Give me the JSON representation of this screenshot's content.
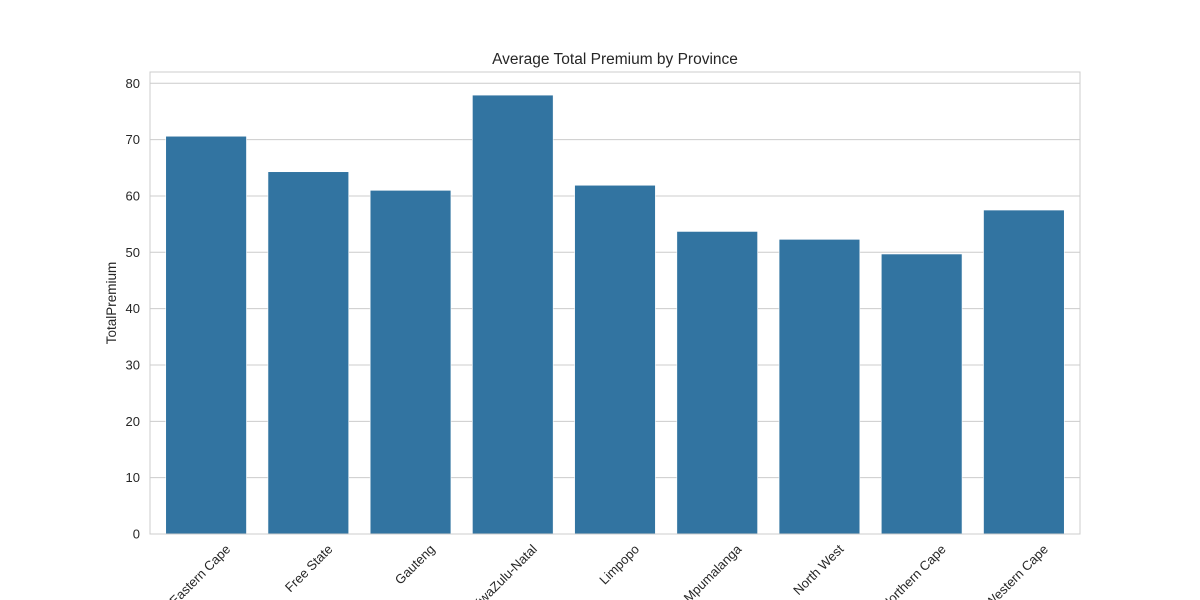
{
  "chart_data": {
    "type": "bar",
    "title": "Average Total Premium by Province",
    "xlabel": "",
    "ylabel": "TotalPremium",
    "categories": [
      "Eastern Cape",
      "Free State",
      "Gauteng",
      "KwaZulu-Natal",
      "Limpopo",
      "Mpumalanga",
      "North West",
      "Northern Cape",
      "Western Cape"
    ],
    "values": [
      70.6,
      64.3,
      61.0,
      77.9,
      61.9,
      53.7,
      52.3,
      49.7,
      57.5
    ],
    "ylim": [
      0,
      82
    ],
    "yticks": [
      0,
      10,
      20,
      30,
      40,
      50,
      60,
      70,
      80
    ],
    "grid": true,
    "bar_color": "#3274a1"
  }
}
